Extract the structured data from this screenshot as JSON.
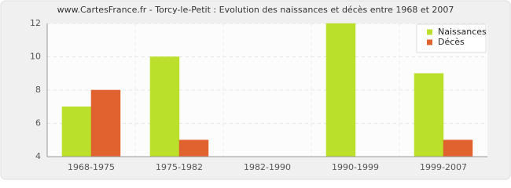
{
  "chart_data": {
    "type": "bar",
    "title": "www.CartesFrance.fr - Torcy-le-Petit : Evolution des naissances et décès entre 1968 et 2007",
    "categories": [
      "1968-1975",
      "1975-1982",
      "1982-1990",
      "1990-1999",
      "1999-2007"
    ],
    "series": [
      {
        "name": "Naissances",
        "color": "#bbe02b",
        "values": [
          7,
          10,
          4,
          12,
          9
        ]
      },
      {
        "name": "Décès",
        "color": "#e0622e",
        "values": [
          8,
          5,
          4,
          4,
          5
        ]
      }
    ],
    "ylim": [
      4,
      12
    ],
    "yticks": [
      4,
      6,
      8,
      10,
      12
    ],
    "grid": true,
    "legend": "top-right"
  }
}
